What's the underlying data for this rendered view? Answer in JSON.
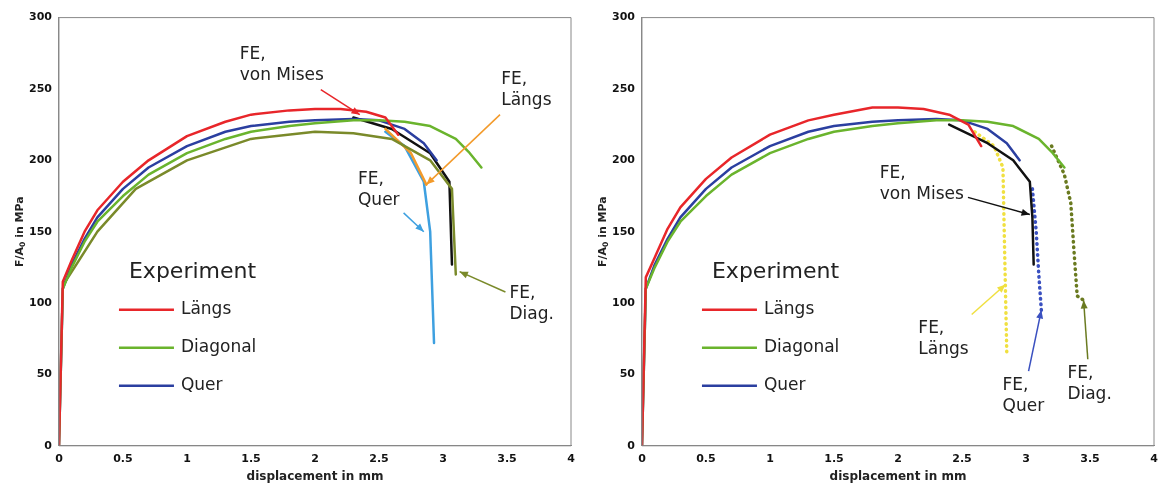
{
  "chart_data": [
    {
      "type": "line",
      "xlabel": "displacement in mm",
      "ylabel": "F/A$_{0}$ in MPa",
      "xlim": [
        0,
        4
      ],
      "xticks": [
        0,
        0.5,
        1,
        1.5,
        2,
        2.5,
        3,
        3.5,
        4
      ],
      "ylim": [
        0,
        300
      ],
      "yticks": [
        0,
        50,
        100,
        150,
        200,
        250,
        300
      ],
      "grid": false,
      "legend": "bottom left",
      "legend_title": "Experiment",
      "marker": "none",
      "line_style": "solid",
      "series": [
        {
          "name": "Längs",
          "color": "#e8262a",
          "x": [
            0,
            0.03,
            0.1,
            0.2,
            0.3,
            0.5,
            0.7,
            1.0,
            1.3,
            1.5,
            1.8,
            2.0,
            2.2,
            2.4,
            2.55,
            2.65
          ],
          "values": [
            0,
            115,
            130,
            150,
            165,
            185,
            200,
            217,
            227,
            232,
            235,
            236,
            236,
            234,
            230,
            218
          ]
        },
        {
          "name": "Diagonal",
          "color": "#6ab42d",
          "x": [
            0,
            0.03,
            0.1,
            0.2,
            0.3,
            0.5,
            0.7,
            1.0,
            1.3,
            1.5,
            1.8,
            2.0,
            2.3,
            2.5,
            2.7,
            2.9,
            3.1,
            3.2,
            3.3
          ],
          "values": [
            0,
            110,
            125,
            143,
            157,
            175,
            190,
            205,
            215,
            220,
            224,
            226,
            228,
            228,
            227,
            224,
            215,
            206,
            195
          ]
        },
        {
          "name": "Quer",
          "color": "#2b3fa0",
          "x": [
            0,
            0.03,
            0.1,
            0.2,
            0.3,
            0.5,
            0.7,
            1.0,
            1.3,
            1.5,
            1.8,
            2.0,
            2.3,
            2.5,
            2.7,
            2.85,
            2.95
          ],
          "values": [
            0,
            110,
            127,
            145,
            160,
            180,
            195,
            210,
            220,
            224,
            227,
            228,
            229,
            228,
            222,
            212,
            200
          ]
        },
        {
          "color": "#7a8a2a",
          "x": [
            0.05,
            0.3,
            0.6,
            1.0,
            1.5,
            2.0,
            2.3,
            2.6,
            2.9,
            3.07,
            3.1
          ],
          "values": [
            115,
            150,
            180,
            200,
            215,
            220,
            219,
            215,
            200,
            180,
            120
          ]
        },
        {
          "color": "#f39a2a",
          "x": [
            2.55,
            2.75,
            2.87
          ],
          "values": [
            222,
            205,
            183
          ]
        },
        {
          "color": "#3ea0e0",
          "x": [
            2.55,
            2.7,
            2.85,
            2.9,
            2.93
          ],
          "values": [
            220,
            210,
            185,
            150,
            72
          ]
        },
        {
          "color": "#111111",
          "x": [
            2.3,
            2.6,
            2.9,
            3.05,
            3.07
          ],
          "values": [
            230,
            222,
            205,
            185,
            127
          ]
        }
      ],
      "annotations": [
        {
          "text": "FE,\nvon Mises",
          "x": 2.35,
          "y": 232
        },
        {
          "text": "FE,\nLängs",
          "x": 2.87,
          "y": 183
        },
        {
          "text": "FE,\nQuer",
          "x": 2.85,
          "y": 150
        },
        {
          "text": "FE,\nDiag.",
          "x": 3.13,
          "y": 122
        }
      ]
    },
    {
      "type": "line",
      "xlabel": "displacement in mm",
      "ylabel": "F/A$_{0}$ in MPa",
      "xlim": [
        0,
        4
      ],
      "xticks": [
        0,
        0.5,
        1,
        1.5,
        2,
        2.5,
        3,
        3.5,
        4
      ],
      "ylim": [
        0,
        300
      ],
      "yticks": [
        0,
        50,
        100,
        150,
        200,
        250,
        300
      ],
      "grid": false,
      "legend": "bottom left",
      "legend_title": "Experiment",
      "marker": "none",
      "line_style": "solid",
      "series": [
        {
          "name": "Längs",
          "color": "#e8262a",
          "x": [
            0,
            0.03,
            0.1,
            0.2,
            0.3,
            0.5,
            0.7,
            1.0,
            1.3,
            1.5,
            1.8,
            2.0,
            2.2,
            2.4,
            2.55,
            2.65
          ],
          "values": [
            0,
            118,
            132,
            152,
            167,
            187,
            202,
            218,
            228,
            232,
            237,
            237,
            236,
            232,
            225,
            210
          ]
        },
        {
          "name": "Diagonal",
          "color": "#6ab42d",
          "x": [
            0,
            0.03,
            0.1,
            0.2,
            0.3,
            0.5,
            0.7,
            1.0,
            1.3,
            1.5,
            1.8,
            2.0,
            2.3,
            2.5,
            2.7,
            2.9,
            3.1,
            3.2,
            3.3
          ],
          "values": [
            0,
            110,
            125,
            143,
            157,
            175,
            190,
            205,
            215,
            220,
            224,
            226,
            228,
            228,
            227,
            224,
            215,
            206,
            195
          ]
        },
        {
          "name": "Quer",
          "color": "#2b3fa0",
          "x": [
            0,
            0.03,
            0.1,
            0.2,
            0.3,
            0.5,
            0.7,
            1.0,
            1.3,
            1.5,
            1.8,
            2.0,
            2.3,
            2.5,
            2.7,
            2.85,
            2.95
          ],
          "values": [
            0,
            110,
            127,
            145,
            160,
            180,
            195,
            210,
            220,
            224,
            227,
            228,
            229,
            228,
            222,
            212,
            200
          ]
        },
        {
          "color": "#111111",
          "x": [
            2.4,
            2.7,
            2.9,
            3.03,
            3.05,
            3.06
          ],
          "values": [
            225,
            212,
            200,
            185,
            160,
            127
          ]
        },
        {
          "color": "#f0e040",
          "line_style": "dotted",
          "x": [
            2.6,
            2.75,
            2.82,
            2.83,
            2.85
          ],
          "values": [
            220,
            210,
            195,
            150,
            65
          ]
        },
        {
          "color": "#3a50c0",
          "line_style": "dotted",
          "x": [
            3.05,
            3.08,
            3.1,
            3.12
          ],
          "values": [
            180,
            150,
            120,
            95
          ]
        },
        {
          "color": "#6a7a20",
          "line_style": "dotted",
          "x": [
            3.2,
            3.3,
            3.35,
            3.38,
            3.4,
            3.45
          ],
          "values": [
            210,
            190,
            170,
            130,
            105,
            102
          ]
        }
      ],
      "annotations": [
        {
          "text": "FE,\nvon Mises",
          "x": 3.03,
          "y": 162
        },
        {
          "text": "FE,\nLängs",
          "x": 2.84,
          "y": 113
        },
        {
          "text": "FE,\nQuer",
          "x": 3.12,
          "y": 95
        },
        {
          "text": "FE,\nDiag.",
          "x": 3.45,
          "y": 102
        }
      ]
    }
  ]
}
